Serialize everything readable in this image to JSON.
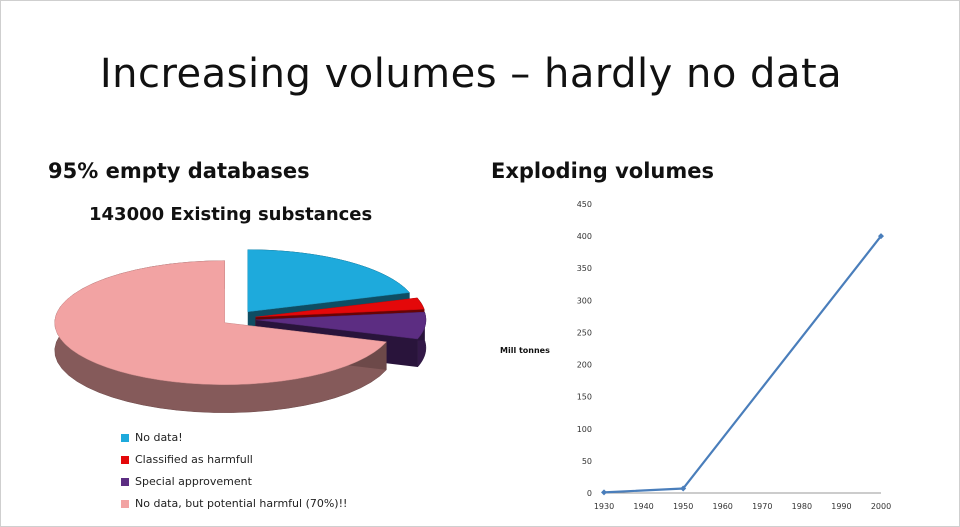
{
  "slide": {
    "title": "Increasing volumes – hardly no data"
  },
  "left": {
    "heading": "95% empty databases"
  },
  "right": {
    "heading": "Exploding volumes"
  },
  "chart_data": [
    {
      "type": "pie",
      "title": "143000 Existing substances",
      "style": "3d-exploded",
      "legend_position": "bottom",
      "slices": [
        {
          "label": "No data!",
          "value": 20,
          "color": "#1eaadc"
        },
        {
          "label": "Classified as harmfull",
          "value": 3,
          "color": "#e4080a"
        },
        {
          "label": "Special approvement",
          "value": 7,
          "color": "#5c2d82"
        },
        {
          "label": "No data, but potential harmful (70%)!!",
          "value": 70,
          "color": "#f2a3a3"
        }
      ]
    },
    {
      "type": "line",
      "ylabel": "Mill tonnes",
      "xlim": [
        1930,
        2000
      ],
      "ylim": [
        0,
        450
      ],
      "x_ticks": [
        1930,
        1940,
        1950,
        1960,
        1970,
        1980,
        1990,
        2000
      ],
      "y_ticks": [
        0,
        50,
        100,
        150,
        200,
        250,
        300,
        350,
        400,
        450
      ],
      "grid": false,
      "series": [
        {
          "x": [
            1930,
            1950,
            2000
          ],
          "y": [
            1,
            7,
            400
          ],
          "color": "#4a7ebb"
        }
      ]
    }
  ]
}
